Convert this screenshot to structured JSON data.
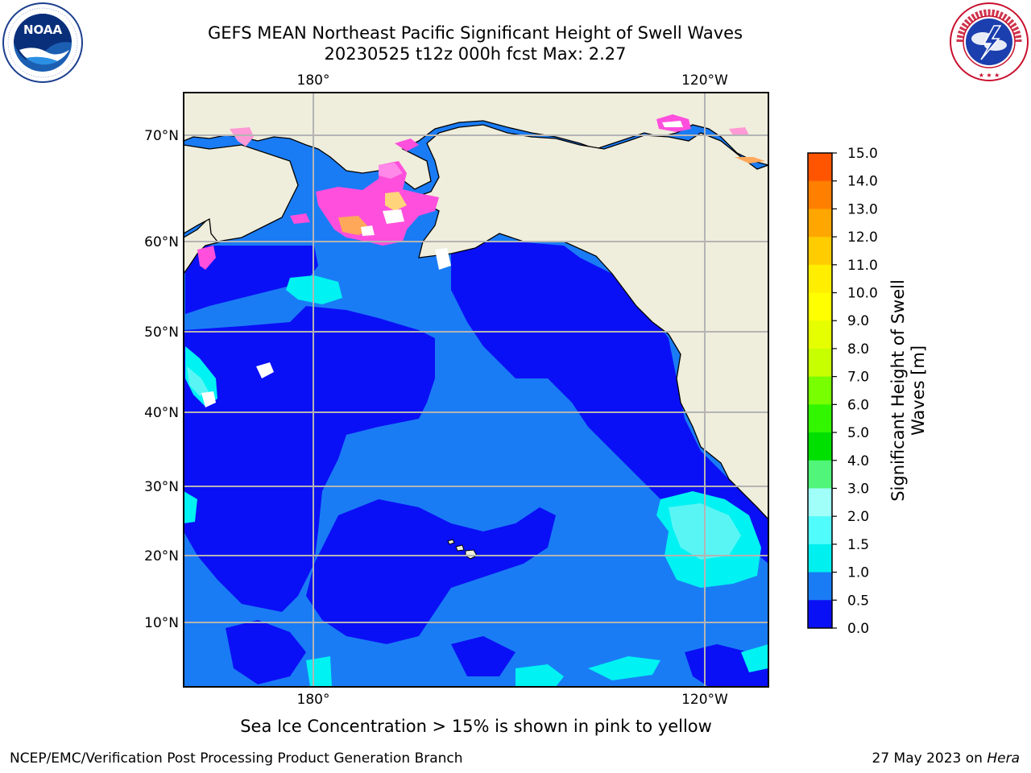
{
  "header": {
    "title_line1": "GEFS MEAN Northeast Pacific Significant Height of Swell Waves",
    "title_line2": "20230525 t12z 000h fcst   Max: 2.27"
  },
  "logos": {
    "left": "NOAA",
    "left_ring": "NATIONAL OCEANIC AND ATMOSPHERIC ADMINISTRATION · U.S. DEPARTMENT OF COMMERCE",
    "right_ring": "NATIONAL WEATHER SERVICE"
  },
  "map": {
    "lon_labels_top": [
      "180°",
      "120°W"
    ],
    "lon_labels_bottom": [
      "180°",
      "120°W"
    ],
    "lat_labels": [
      "70°N",
      "60°N",
      "50°N",
      "40°N",
      "30°N",
      "20°N",
      "10°N"
    ],
    "colors": {
      "land": "#efeddc",
      "ocean_base": "#1a7cf5",
      "low": "#0a10f5",
      "cyan": "#00f2f2",
      "light_cyan": "#59f5f5",
      "ice_pink": "#ff4fdc",
      "ice_orange": "#ffa85a",
      "grid": "#b4b4b4"
    }
  },
  "colorbar": {
    "title_line1": "Significant Height of Swell",
    "title_line2": "Waves [m]",
    "ticks": [
      "15.0",
      "14.0",
      "13.0",
      "12.0",
      "11.0",
      "10.0",
      "9.0",
      "8.0",
      "7.0",
      "6.0",
      "5.0",
      "4.0",
      "3.0",
      "2.0",
      "1.5",
      "1.0",
      "0.5",
      "0.0"
    ],
    "colors_top_to_bottom": [
      "#ff0000",
      "#ff2a00",
      "#ff5500",
      "#ff7f00",
      "#ffa600",
      "#ffcc00",
      "#ffee00",
      "#ffff00",
      "#e6ff00",
      "#c8ff00",
      "#78ff00",
      "#32f500",
      "#00e000",
      "#50f57a",
      "#a0fff8",
      "#50fcfc",
      "#00f0f0",
      "#1a7cf5",
      "#0a10f5"
    ]
  },
  "caption": "Sea Ice Concentration > 15% is shown in pink to yellow",
  "footer": {
    "left": "NCEP/EMC/Verification Post Processing Product Generation Branch",
    "right_date": "27 May 2023 on ",
    "right_host": "Hera"
  }
}
